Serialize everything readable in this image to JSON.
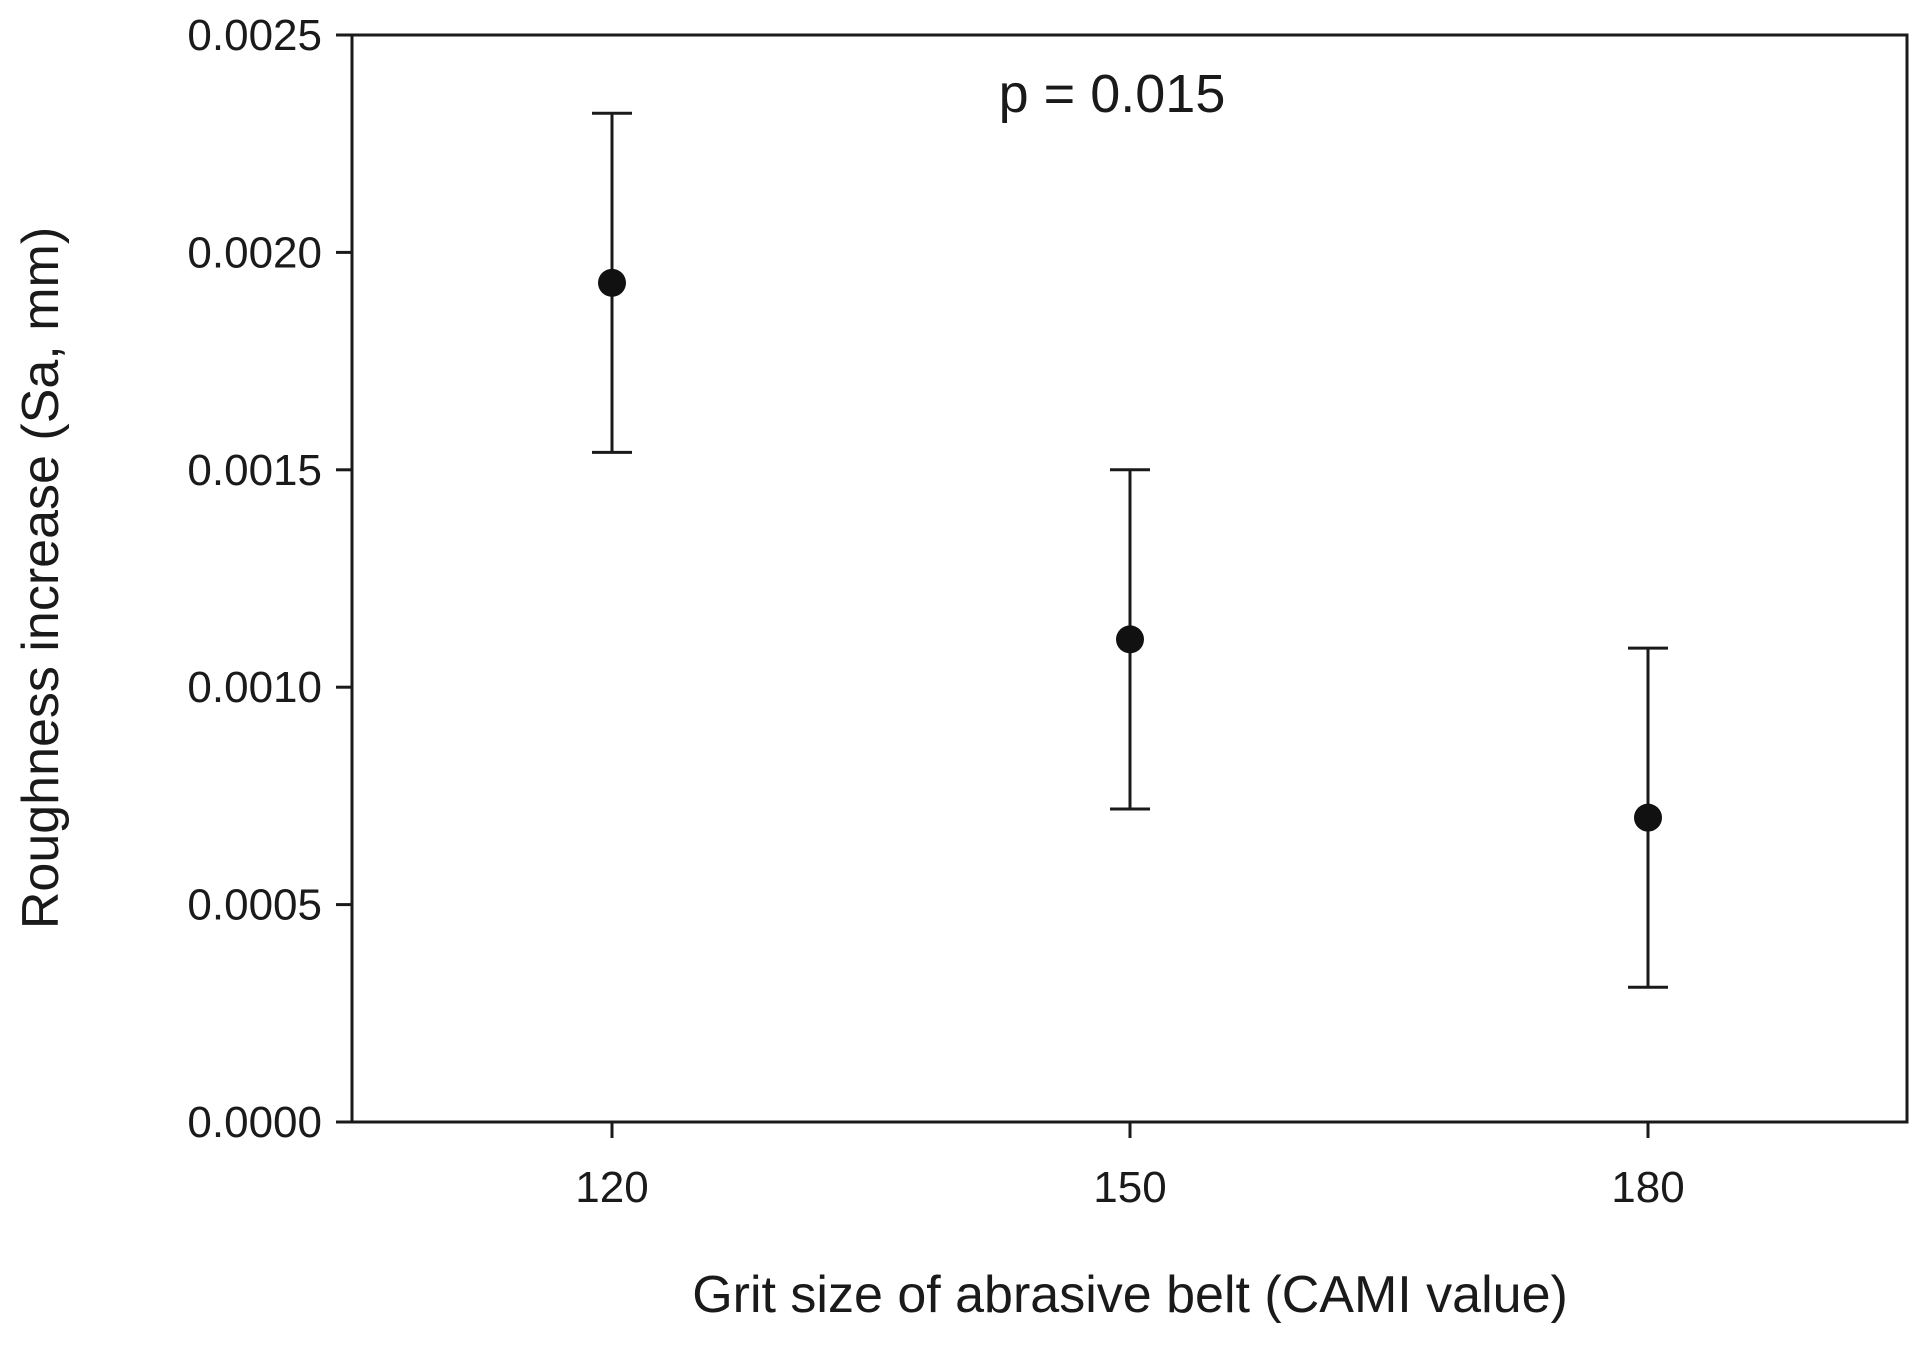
{
  "chart_data": {
    "type": "scatter",
    "title": "",
    "xlabel": "Grit size of abrasive belt (CAMI value)",
    "ylabel": "Roughness increase (Sa, mm)",
    "x_categories": [
      "120",
      "150",
      "180"
    ],
    "ylim": [
      0,
      0.0025
    ],
    "y_ticks": [
      "0.0000",
      "0.0005",
      "0.0010",
      "0.0015",
      "0.0020",
      "0.0025"
    ],
    "y_tick_values": [
      0,
      0.0005,
      0.001,
      0.0015,
      0.002,
      0.0025
    ],
    "grid": false,
    "series": [
      {
        "name": "Roughness increase",
        "points": [
          {
            "x": "120",
            "y": 0.00193,
            "err_low": 0.00154,
            "err_high": 0.00232
          },
          {
            "x": "150",
            "y": 0.00111,
            "err_low": 0.00072,
            "err_high": 0.0015
          },
          {
            "x": "180",
            "y": 0.0007,
            "err_low": 0.00031,
            "err_high": 0.00109
          }
        ]
      }
    ],
    "annotation": "p = 0.015"
  }
}
